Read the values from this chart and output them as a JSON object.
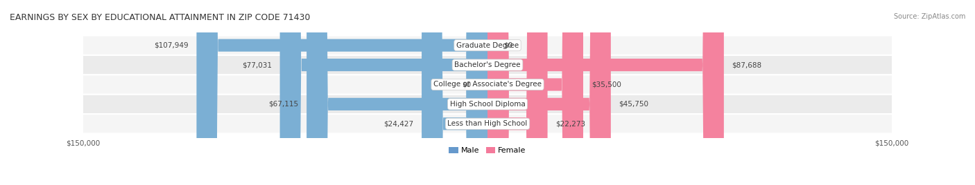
{
  "title": "EARNINGS BY SEX BY EDUCATIONAL ATTAINMENT IN ZIP CODE 71430",
  "source": "Source: ZipAtlas.com",
  "categories": [
    "Less than High School",
    "High School Diploma",
    "College or Associate's Degree",
    "Bachelor's Degree",
    "Graduate Degree"
  ],
  "male_values": [
    24427,
    67115,
    0,
    77031,
    107949
  ],
  "female_values": [
    22273,
    45750,
    35500,
    87688,
    0
  ],
  "male_labels": [
    "$24,427",
    "$67,115",
    "$0",
    "$77,031",
    "$107,949"
  ],
  "female_labels": [
    "$22,273",
    "$45,750",
    "$35,500",
    "$87,688",
    "$0"
  ],
  "male_color": "#7bafd4",
  "female_color": "#f4829e",
  "male_color_legend": "#6699cc",
  "female_color_legend": "#f47a9b",
  "bar_bg_color": "#e8e8e8",
  "row_bg_colors": [
    "#f5f5f5",
    "#ebebeb"
  ],
  "max_value": 150000,
  "title_fontsize": 9,
  "source_fontsize": 7,
  "label_fontsize": 7.5,
  "category_fontsize": 7.5,
  "axis_label": "$150,000",
  "background_color": "#ffffff"
}
